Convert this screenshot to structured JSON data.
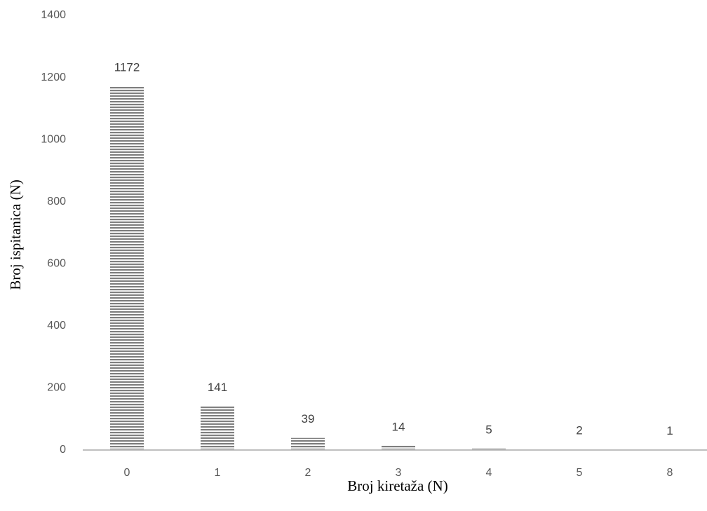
{
  "chart_data": {
    "type": "bar",
    "categories": [
      "0",
      "1",
      "2",
      "3",
      "4",
      "5",
      "8"
    ],
    "values": [
      1172,
      141,
      39,
      14,
      5,
      2,
      1
    ],
    "data_labels": [
      "1172",
      "141",
      "39",
      "14",
      "5",
      "2",
      "1"
    ],
    "title": "",
    "xlabel": "Broj kiretaža (N)",
    "ylabel": "Broj ispitanica (N)",
    "ylim": [
      0,
      1400
    ],
    "yticks": [
      0,
      200,
      400,
      600,
      800,
      1000,
      1200,
      1400
    ],
    "grid": false,
    "legend": "none",
    "bar_fill": "horizontal-hatch",
    "colors": {
      "bar_stripe": "#7f7f7f",
      "bar_gap": "#ffffff",
      "axis_line": "#bfbfbf",
      "tick_text": "#595959"
    }
  }
}
